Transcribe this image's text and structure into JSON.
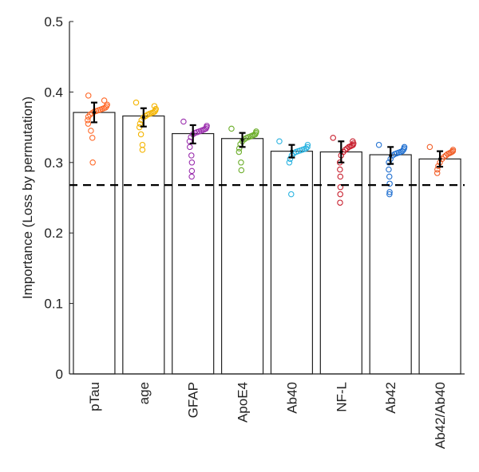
{
  "chart_data": {
    "type": "bar_swarm",
    "y_label": "Importance (Loss by permutation)",
    "categories": [
      "pTau",
      "age",
      "GFAP",
      "ApoE4",
      "Ab40",
      "NF-L",
      "Ab42",
      "Ab42/Ab40"
    ],
    "values": [
      0.371,
      0.366,
      0.341,
      0.334,
      0.316,
      0.315,
      0.311,
      0.305
    ],
    "means": [
      0.371,
      0.364,
      0.34,
      0.332,
      0.316,
      0.315,
      0.31,
      0.305
    ],
    "errors": [
      0.014,
      0.013,
      0.013,
      0.01,
      0.009,
      0.015,
      0.012,
      0.011
    ],
    "colors": [
      "#ff6a2a",
      "#f4b400",
      "#9b2fae",
      "#6cae2a",
      "#2bb3e0",
      "#c8202f",
      "#1f6fd0",
      "#f2602a"
    ],
    "points": [
      [
        0.395,
        0.388,
        0.382,
        0.38,
        0.378,
        0.377,
        0.376,
        0.375,
        0.374,
        0.373,
        0.372,
        0.37,
        0.368,
        0.365,
        0.36,
        0.355,
        0.345,
        0.335,
        0.3
      ],
      [
        0.385,
        0.38,
        0.376,
        0.374,
        0.372,
        0.371,
        0.37,
        0.369,
        0.368,
        0.366,
        0.364,
        0.36,
        0.355,
        0.35,
        0.34,
        0.325,
        0.318
      ],
      [
        0.358,
        0.352,
        0.35,
        0.348,
        0.347,
        0.346,
        0.345,
        0.344,
        0.343,
        0.342,
        0.34,
        0.336,
        0.33,
        0.322,
        0.31,
        0.3,
        0.288,
        0.28
      ],
      [
        0.348,
        0.344,
        0.342,
        0.34,
        0.339,
        0.338,
        0.337,
        0.336,
        0.335,
        0.333,
        0.33,
        0.326,
        0.32,
        0.315,
        0.3,
        0.289
      ],
      [
        0.33,
        0.325,
        0.322,
        0.32,
        0.319,
        0.318,
        0.317,
        0.316,
        0.315,
        0.313,
        0.31,
        0.305,
        0.3,
        0.255
      ],
      [
        0.335,
        0.33,
        0.327,
        0.325,
        0.324,
        0.323,
        0.322,
        0.32,
        0.318,
        0.315,
        0.31,
        0.3,
        0.29,
        0.28,
        0.265,
        0.255,
        0.243
      ],
      [
        0.325,
        0.322,
        0.32,
        0.318,
        0.316,
        0.315,
        0.314,
        0.313,
        0.312,
        0.31,
        0.305,
        0.3,
        0.29,
        0.28,
        0.27,
        0.258,
        0.255
      ],
      [
        0.322,
        0.318,
        0.316,
        0.315,
        0.314,
        0.313,
        0.312,
        0.31,
        0.308,
        0.305,
        0.3,
        0.295,
        0.29,
        0.285
      ]
    ],
    "reference_line": 0.268,
    "ylim": [
      0,
      0.5
    ],
    "yticks": [
      0,
      0.1,
      0.2,
      0.3,
      0.4,
      0.5
    ]
  }
}
